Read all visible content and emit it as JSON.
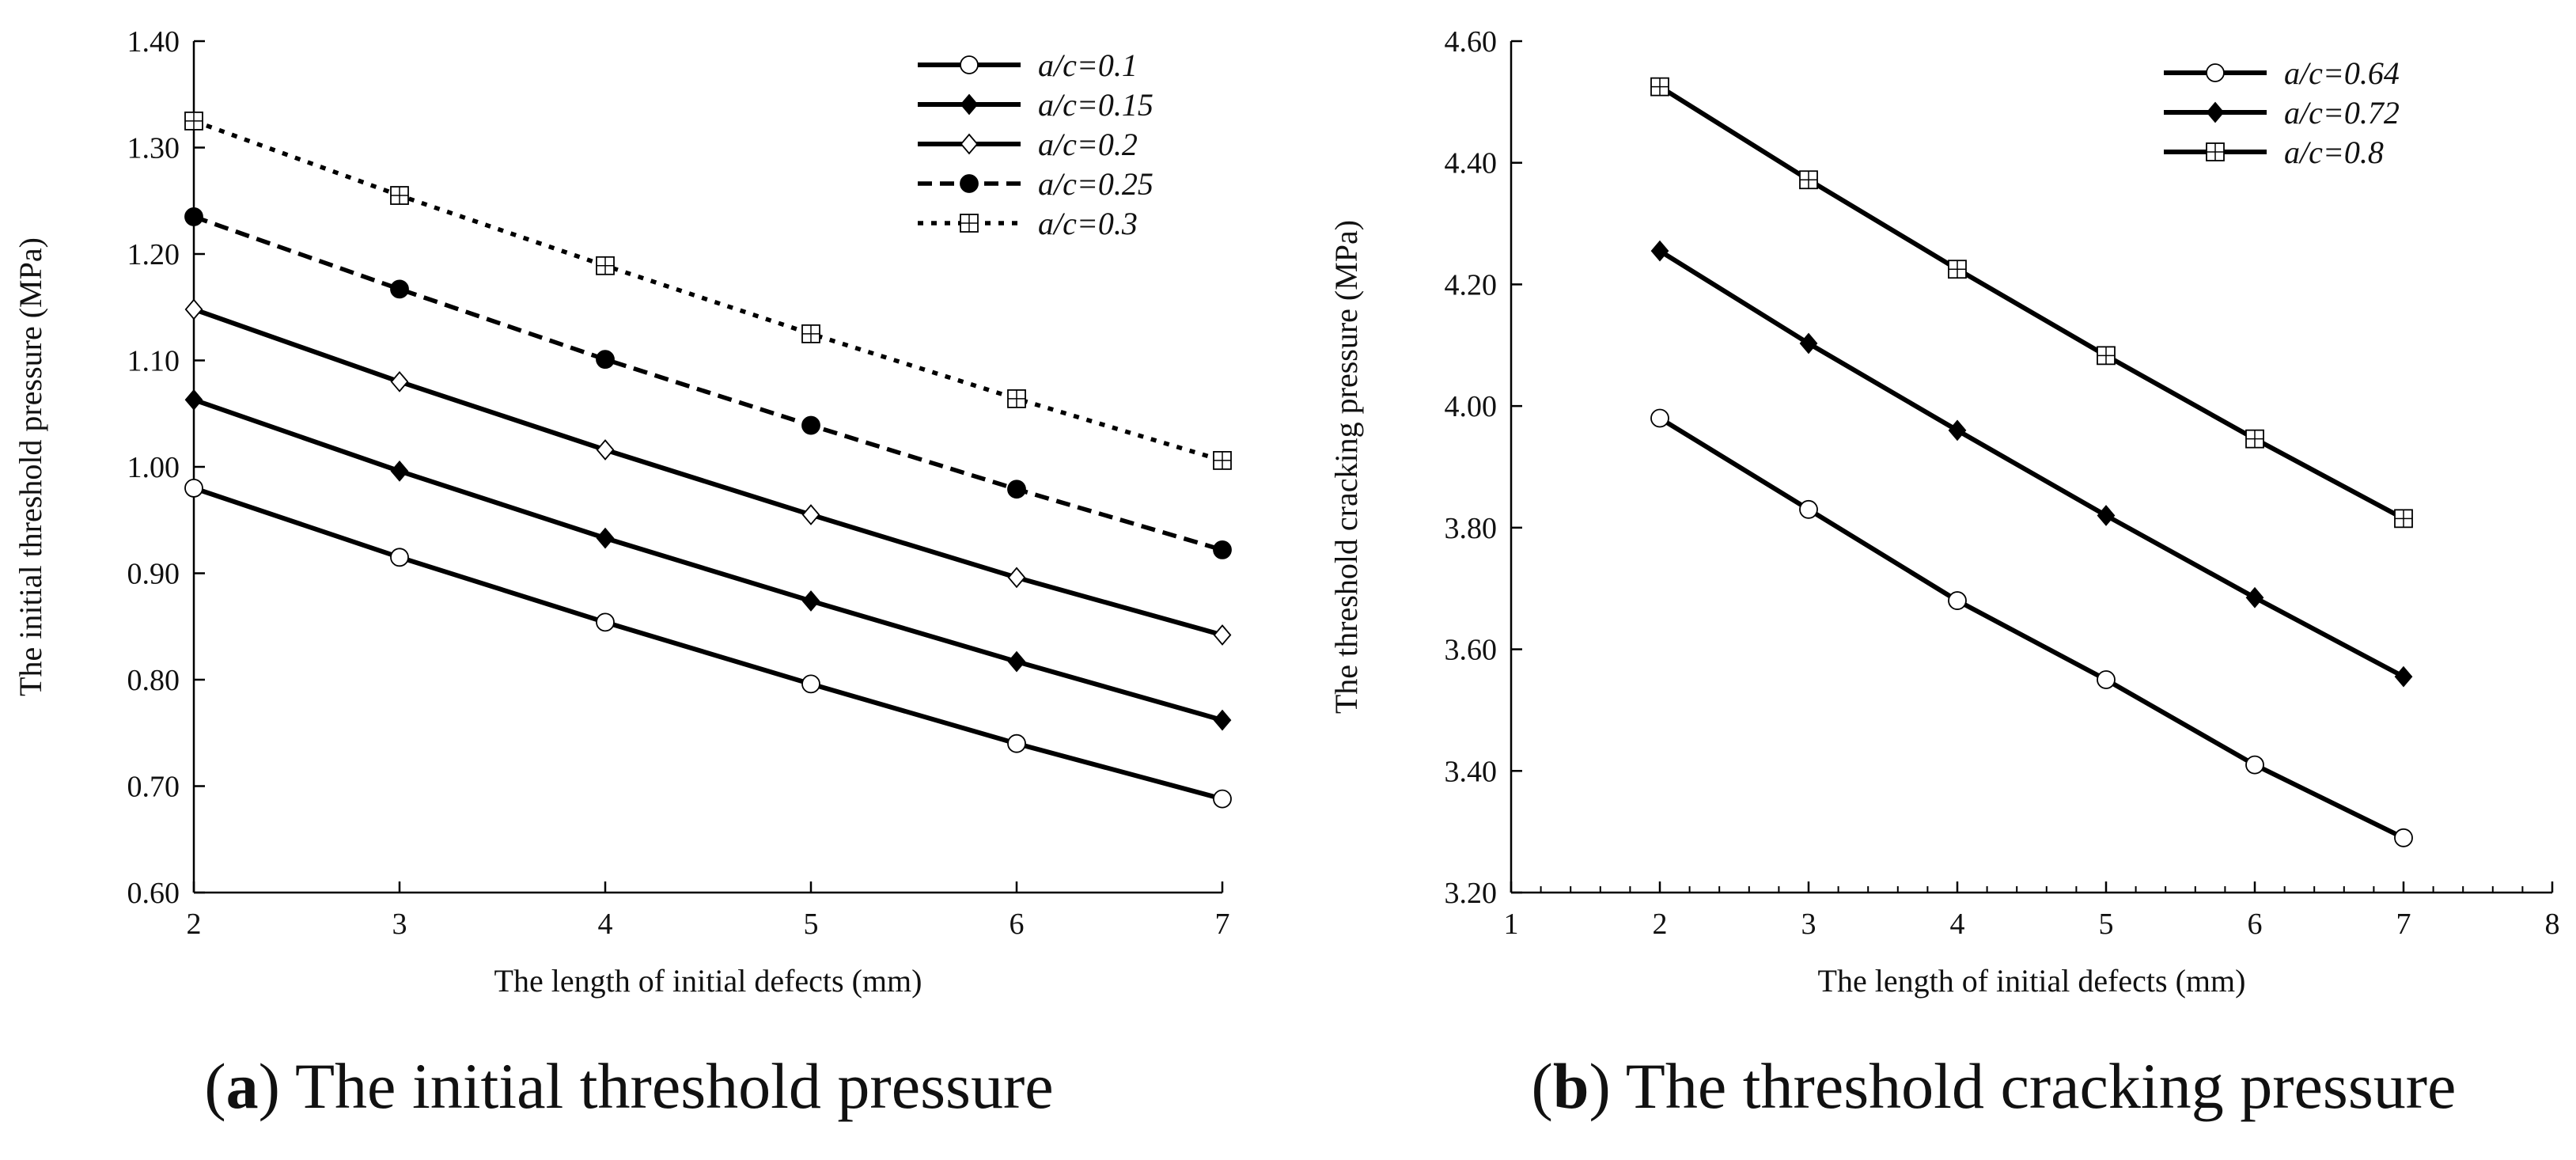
{
  "chart_data": [
    {
      "type": "line",
      "caption_letter": "a",
      "caption_text": "The initial threshold pressure",
      "xlabel": "The length of initial defects (mm)",
      "ylabel": "The initial threshold pressure (MPa)",
      "xlim": [
        2,
        7
      ],
      "ylim": [
        0.6,
        1.4
      ],
      "xticks": [
        2,
        3,
        4,
        5,
        6,
        7
      ],
      "xtick_labels": [
        "2",
        "3",
        "4",
        "5",
        "6",
        "7"
      ],
      "yticks": [
        0.6,
        0.7,
        0.8,
        0.9,
        1.0,
        1.1,
        1.2,
        1.3,
        1.4
      ],
      "ytick_labels": [
        "0.60",
        "0.70",
        "0.80",
        "0.90",
        "1.00",
        "1.10",
        "1.20",
        "1.30",
        "1.40"
      ],
      "x": [
        2,
        3,
        4,
        5,
        6,
        7
      ],
      "legend_position": "top-right",
      "series": [
        {
          "name": "a/c=0.1",
          "marker": "circle-open",
          "line": "solid",
          "values": [
            0.98,
            0.915,
            0.854,
            0.796,
            0.74,
            0.688
          ]
        },
        {
          "name": "a/c=0.15",
          "marker": "diamond-filled",
          "line": "solid",
          "values": [
            1.063,
            0.996,
            0.933,
            0.874,
            0.817,
            0.762
          ]
        },
        {
          "name": "a/c=0.2",
          "marker": "diamond-open",
          "line": "solid",
          "values": [
            1.148,
            1.08,
            1.016,
            0.955,
            0.896,
            0.842
          ]
        },
        {
          "name": "a/c=0.25",
          "marker": "circle-filled",
          "line": "dashed",
          "values": [
            1.235,
            1.167,
            1.101,
            1.039,
            0.979,
            0.922
          ]
        },
        {
          "name": "a/c=0.3",
          "marker": "square-cross",
          "line": "dotted",
          "values": [
            1.325,
            1.255,
            1.189,
            1.125,
            1.064,
            1.006
          ]
        }
      ]
    },
    {
      "type": "line",
      "caption_letter": "b",
      "caption_text": "The threshold cracking pressure",
      "xlabel": "The length of initial defects (mm)",
      "ylabel": "The threshold cracking pressure (MPa)",
      "xlim": [
        1,
        8
      ],
      "ylim": [
        3.2,
        4.6
      ],
      "xticks": [
        1,
        2,
        3,
        4,
        5,
        6,
        7,
        8
      ],
      "xtick_labels": [
        "1",
        "2",
        "3",
        "4",
        "5",
        "6",
        "7",
        "8"
      ],
      "yticks": [
        3.2,
        3.4,
        3.6,
        3.8,
        4.0,
        4.2,
        4.4,
        4.6
      ],
      "ytick_labels": [
        "3.20",
        "3.40",
        "3.60",
        "3.80",
        "4.00",
        "4.20",
        "4.40",
        "4.60"
      ],
      "x": [
        2,
        3,
        4,
        5,
        6,
        7
      ],
      "legend_position": "top-right",
      "series": [
        {
          "name": "a/c=0.64",
          "marker": "circle-open",
          "line": "solid",
          "values": [
            3.98,
            3.83,
            3.68,
            3.55,
            3.41,
            3.29
          ]
        },
        {
          "name": "a/c=0.72",
          "marker": "diamond-filled",
          "line": "solid",
          "values": [
            4.255,
            4.103,
            3.96,
            3.82,
            3.685,
            3.555
          ]
        },
        {
          "name": "a/c=0.8",
          "marker": "square-cross",
          "line": "solid",
          "values": [
            4.525,
            4.372,
            4.225,
            4.083,
            3.946,
            3.815
          ]
        }
      ]
    }
  ]
}
